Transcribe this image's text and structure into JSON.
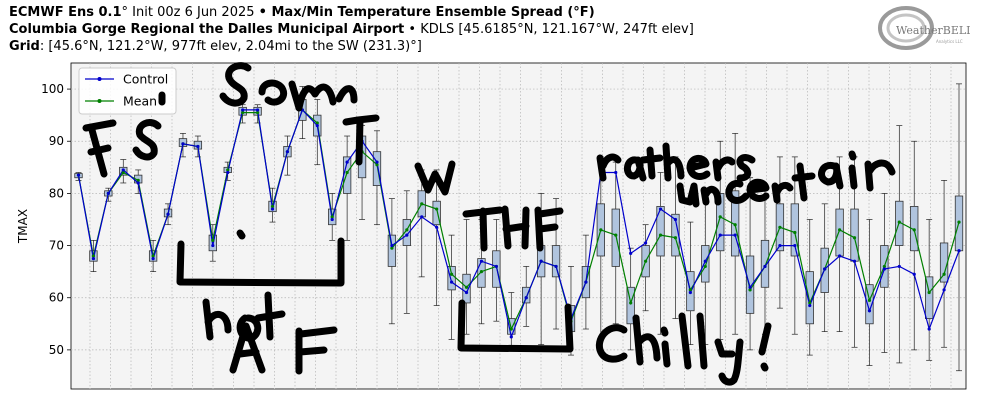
{
  "header": {
    "line1_model": "ECMWF Ens 0.1",
    "line1_deg": "°",
    "line1_init": " Init 00z 6 Jun 2025 ",
    "line1_bullet": "•",
    "line1_title": " Max/Min Temperature Ensemble Spread (°F)",
    "line2_station": "Columbia Gorge Regional the Dalles Municipal Airport",
    "line2_rest": " • KDLS [45.6185°N, 121.167°W, 247ft elev]",
    "line3_label": "Grid",
    "line3_rest": ": [45.6°N, 121.2°W, 977ft elev, 2.04mi to the SW (231.3)°]"
  },
  "logo": {
    "name": "WeatherBELL",
    "sub": "Analytics LLC"
  },
  "annotations": {
    "handwriting": [
      "It's so hot",
      "hot AF",
      "w TF",
      "rather uncertain",
      "Chilly!"
    ]
  },
  "chart_data": {
    "type": "box",
    "title": "Max/Min Temperature Ensemble Spread (°F)",
    "ylabel": "TMAX",
    "ylim": [
      42.5,
      105
    ],
    "yticks": [
      50,
      60,
      70,
      80,
      90,
      100
    ],
    "grid": true,
    "legend_position": "top-left",
    "colors": {
      "control": "#0000cc",
      "mean": "#008000",
      "box_fill": "#b0c4de",
      "plot_bg": "#f4f4f4"
    },
    "series": [
      {
        "name": "Control",
        "values": [
          83.5,
          67.5,
          80,
          84.5,
          82,
          67.5,
          76,
          89.5,
          89,
          70,
          84,
          96,
          96,
          77,
          88,
          96,
          93,
          75,
          86,
          90,
          86,
          70,
          72,
          75.5,
          73.5,
          63,
          61,
          67,
          66,
          52.5,
          60,
          67,
          66,
          56,
          63,
          84,
          84,
          68.5,
          70.5,
          77,
          75,
          61,
          67,
          72,
          72,
          62,
          66,
          70,
          70,
          58.5,
          65.5,
          68,
          67,
          57.5,
          65.5,
          66,
          64.5,
          54,
          61.5,
          69
        ]
      },
      {
        "name": "Mean",
        "values": [
          83.5,
          68,
          80,
          84,
          82.5,
          68,
          76,
          89.5,
          89,
          71,
          84.5,
          95.5,
          95.5,
          77.5,
          88,
          96,
          93.5,
          75.5,
          84,
          88,
          85.5,
          69.5,
          73,
          78,
          77,
          64.5,
          62,
          65,
          66,
          54,
          60,
          67,
          66,
          55.5,
          63,
          73,
          72,
          59,
          67,
          72,
          71.5,
          61.5,
          66,
          75.5,
          74,
          61.5,
          66,
          73.5,
          72.5,
          59,
          65.5,
          73,
          71.5,
          59.5,
          66,
          74.5,
          73,
          61,
          64.5,
          74.5
        ]
      },
      {
        "name": "Box q1",
        "values": [
          83,
          67,
          79.5,
          83.5,
          82,
          67,
          75.5,
          89,
          88.5,
          69,
          84,
          95,
          95,
          76.5,
          87,
          94,
          91,
          74,
          80,
          83,
          81.5,
          66,
          70,
          75.5,
          74,
          61.5,
          59,
          62,
          62,
          53,
          59,
          64,
          64,
          53.5,
          60,
          68,
          66,
          55,
          64,
          68,
          68,
          57.5,
          63,
          69,
          68,
          57,
          62,
          69,
          68,
          55,
          61,
          68,
          67,
          55,
          62,
          70,
          69,
          56,
          63,
          69
        ]
      },
      {
        "name": "Box q3",
        "values": [
          83.8,
          69,
          80.5,
          85,
          83.5,
          69,
          77,
          90.5,
          90,
          72,
          85,
          96.5,
          96.5,
          78.5,
          89,
          98,
          95,
          77,
          87,
          91,
          88,
          72,
          75,
          80.5,
          78.5,
          66,
          64.5,
          67.5,
          69,
          56,
          62,
          70,
          70,
          58.5,
          66,
          78,
          77,
          62,
          70,
          77.5,
          76,
          65,
          70,
          80,
          80.5,
          68,
          71,
          78,
          78,
          65,
          69.5,
          77,
          77,
          62.5,
          70,
          78.5,
          77.5,
          64,
          70.5,
          79.5
        ]
      },
      {
        "name": "Whisker low",
        "values": [
          82.5,
          65,
          78.5,
          82,
          80,
          65,
          74,
          87,
          87,
          67,
          82.5,
          93.5,
          93.5,
          74.5,
          83.5,
          90.5,
          85.5,
          71,
          71,
          75,
          74,
          55,
          57,
          64,
          58.5,
          52,
          53,
          55,
          55.5,
          50,
          54.5,
          51,
          54,
          49,
          54,
          52,
          55,
          50,
          57.5,
          53,
          56,
          51,
          51,
          52,
          53,
          50,
          53,
          58,
          53,
          49,
          53.5,
          53.5,
          50.5,
          47,
          49.5,
          47.5,
          50,
          48,
          50.5,
          46
        ]
      },
      {
        "name": "Whisker high",
        "values": [
          84,
          71,
          81,
          86.5,
          84.5,
          71,
          78,
          91.5,
          91,
          74,
          86,
          97,
          97,
          81,
          91,
          100.5,
          98,
          80,
          91,
          93,
          92,
          79,
          80.5,
          84.5,
          84.5,
          72,
          75,
          75,
          75,
          61,
          66,
          80,
          79,
          66,
          72,
          87,
          86,
          69.5,
          74,
          84,
          87,
          74.5,
          80,
          90,
          91.5,
          83,
          81,
          87,
          87,
          75,
          78,
          87,
          87,
          75,
          80,
          93,
          90,
          75,
          82.5,
          101
        ]
      }
    ]
  }
}
